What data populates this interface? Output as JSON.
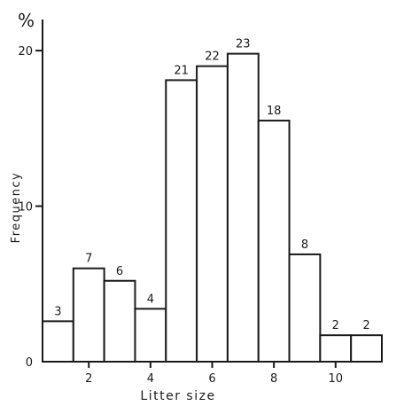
{
  "chart_data": {
    "type": "bar",
    "y_unit": "%",
    "ylabel": "Frequency",
    "xlabel": "Litter size",
    "ylim": [
      0,
      22
    ],
    "xlim": [
      0,
      11
    ],
    "grid": false,
    "bars": [
      {
        "x_start": 0,
        "x_end": 1,
        "value": 2.6,
        "count_label": "3"
      },
      {
        "x_start": 1,
        "x_end": 2,
        "value": 6.0,
        "count_label": "7"
      },
      {
        "x_start": 2,
        "x_end": 3,
        "value": 5.2,
        "count_label": "6"
      },
      {
        "x_start": 3,
        "x_end": 4,
        "value": 3.4,
        "count_label": "4"
      },
      {
        "x_start": 4,
        "x_end": 5,
        "value": 18.1,
        "count_label": "21"
      },
      {
        "x_start": 5,
        "x_end": 6,
        "value": 19.0,
        "count_label": "22"
      },
      {
        "x_start": 6,
        "x_end": 7,
        "value": 19.8,
        "count_label": "23"
      },
      {
        "x_start": 7,
        "x_end": 8,
        "value": 15.5,
        "count_label": "18"
      },
      {
        "x_start": 8,
        "x_end": 9,
        "value": 6.9,
        "count_label": "8"
      },
      {
        "x_start": 9,
        "x_end": 10,
        "value": 1.7,
        "count_label": "2"
      },
      {
        "x_start": 10,
        "x_end": 11,
        "value": 1.7,
        "count_label": "2"
      }
    ],
    "x_ticks": [
      {
        "value": 1.5,
        "label": "2"
      },
      {
        "value": 3.5,
        "label": "4"
      },
      {
        "value": 5.5,
        "label": "6"
      },
      {
        "value": 7.5,
        "label": "8"
      },
      {
        "value": 9.5,
        "label": "10"
      }
    ],
    "y_ticks": [
      {
        "value": 0,
        "label": "0"
      },
      {
        "value": 10,
        "label": "10"
      },
      {
        "value": 20,
        "label": "20"
      }
    ]
  }
}
